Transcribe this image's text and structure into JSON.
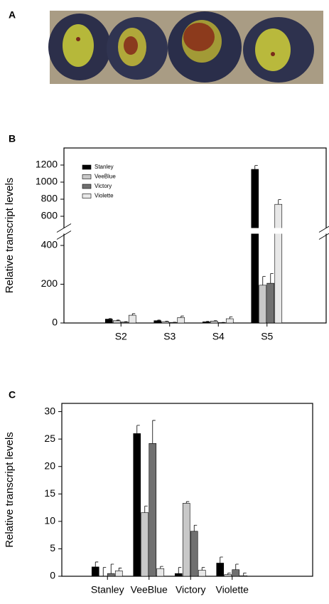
{
  "panel_a": {
    "label": "A"
  },
  "chart_data": [
    {
      "type": "bar",
      "panel_label": "B",
      "ylabel": "Relative transcript levels",
      "categories": [
        "S2",
        "S3",
        "S4",
        "S5"
      ],
      "series": [
        {
          "name": "Stanley",
          "color": "#000000",
          "values": [
            20,
            12,
            6,
            1150
          ],
          "errors": [
            3,
            3,
            2,
            45
          ]
        },
        {
          "name": "VeeBlue",
          "color": "#c8c8c8",
          "values": [
            12,
            7,
            10,
            195
          ],
          "errors": [
            3,
            2,
            2,
            45
          ]
        },
        {
          "name": "Victory",
          "color": "#707070",
          "values": [
            5,
            3,
            2,
            205
          ],
          "errors": [
            2,
            1,
            1,
            50
          ]
        },
        {
          "name": "Violette",
          "color": "#e8e8e8",
          "values": [
            40,
            28,
            22,
            740
          ],
          "errors": [
            8,
            8,
            10,
            55
          ]
        }
      ],
      "ylim": [
        0,
        1400
      ],
      "ybreak": [
        400,
        600
      ],
      "yticks": [
        0,
        200,
        400,
        600,
        800,
        1000,
        1200
      ],
      "legend": "upper left"
    },
    {
      "type": "bar",
      "panel_label": "C",
      "ylabel": "Relative transcript levels",
      "categories": [
        "Stanley",
        "VeeBlue",
        "Victory",
        "Violette"
      ],
      "series": [
        {
          "color": "#000000",
          "values": [
            1.7,
            26,
            0.5,
            2.4
          ],
          "errors": [
            0.9,
            1.5,
            1.1,
            1.1
          ]
        },
        {
          "color": "#c8c8c8",
          "values": [
            0,
            11.6,
            13.3,
            0.3
          ],
          "errors": [
            1.6,
            1.2,
            0.3,
            0.3
          ]
        },
        {
          "color": "#707070",
          "values": [
            0.5,
            24.2,
            8.2,
            1.2
          ],
          "errors": [
            1.7,
            4.2,
            1.1,
            1.0
          ]
        },
        {
          "color": "#e8e8e8",
          "values": [
            1.0,
            1.4,
            1.1,
            0.1
          ],
          "errors": [
            0.5,
            0.4,
            0.5,
            0.5
          ]
        }
      ],
      "ylim": [
        0,
        31.5
      ],
      "yticks": [
        0,
        5,
        10,
        15,
        20,
        25,
        30
      ]
    }
  ]
}
